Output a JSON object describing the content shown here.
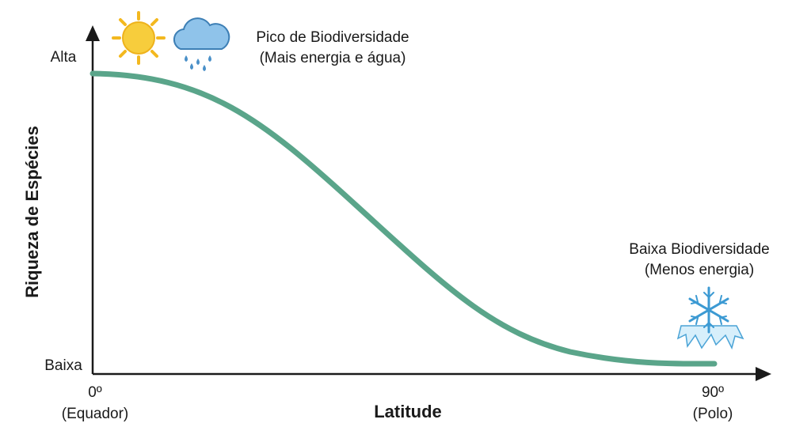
{
  "y_axis": {
    "label": "Riqueza de Espécies",
    "high": "Alta",
    "low": "Baixa"
  },
  "x_axis": {
    "label": "Latitude",
    "start": {
      "value": "0º",
      "note": "(Equador)"
    },
    "end": {
      "value": "90º",
      "note": "(Polo)"
    }
  },
  "annotations": [
    {
      "lines": [
        "Pico de Biodiversidade",
        "(Mais energia e água)"
      ]
    },
    {
      "lines": [
        "Baixa Biodiversidade",
        "(Menos energia)"
      ]
    }
  ]
}
